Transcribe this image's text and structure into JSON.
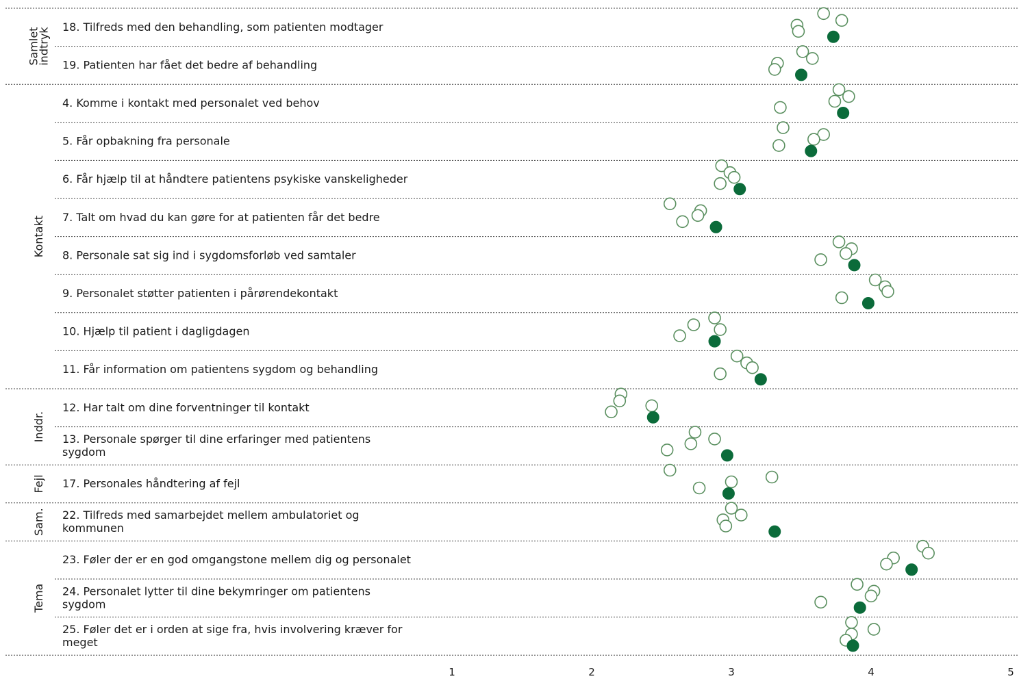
{
  "chart_data": {
    "type": "scatter",
    "title": "",
    "xlabel": "",
    "ylabel": "",
    "xlim": [
      1,
      5
    ],
    "x_ticks": [
      "1",
      "2",
      "3",
      "4",
      "5"
    ],
    "groups": [
      {
        "label": "Samlet indtryk",
        "label_lines": [
          "Samlet",
          "indtryk"
        ],
        "items": [
          {
            "label": "18. Tilfreds med den behandling, som patienten modtager",
            "highlight": 3.73,
            "others": [
              3.66,
              3.79,
              3.47,
              3.48
            ]
          },
          {
            "label": "19. Patienten har fået det bedre af behandling",
            "highlight": 3.5,
            "others": [
              3.51,
              3.58,
              3.33,
              3.31
            ]
          }
        ]
      },
      {
        "label": "Kontakt",
        "label_lines": [
          "Kontakt"
        ],
        "items": [
          {
            "label": "4. Komme i kontakt med personalet ved behov",
            "highlight": 3.8,
            "others": [
              3.77,
              3.84,
              3.74,
              3.35
            ]
          },
          {
            "label": "5. Får opbakning fra personale",
            "highlight": 3.57,
            "others": [
              3.37,
              3.66,
              3.59,
              3.34
            ]
          },
          {
            "label": "6. Får hjælp til at håndtere patientens psykiske vanskeligheder",
            "highlight": 3.06,
            "others": [
              2.93,
              2.99,
              3.02,
              2.92
            ]
          },
          {
            "label": "7. Talt om hvad du kan gøre for at patienten får det bedre",
            "highlight": 2.89,
            "others": [
              2.56,
              2.78,
              2.76,
              2.65
            ]
          },
          {
            "label": "8. Personale sat sig ind i sygdomsforløb ved samtaler",
            "highlight": 3.88,
            "others": [
              3.77,
              3.86,
              3.82,
              3.64
            ]
          },
          {
            "label": "9. Personalet støtter patienten i pårørendekontakt",
            "highlight": 3.98,
            "others": [
              4.03,
              4.1,
              4.12,
              3.79
            ]
          },
          {
            "label": "10. Hjælp til patient i dagligdagen",
            "highlight": 2.88,
            "others": [
              2.88,
              2.73,
              2.92,
              2.63
            ]
          },
          {
            "label": "11. Får information om patientens sygdom og behandling",
            "highlight": 3.21,
            "others": [
              3.04,
              3.11,
              3.15,
              2.92
            ]
          }
        ]
      },
      {
        "label": "Inddr.",
        "label_lines": [
          "Inddr."
        ],
        "items": [
          {
            "label": "12. Har talt om dine forventninger til kontakt",
            "highlight": 2.44,
            "others": [
              2.21,
              2.2,
              2.43,
              2.14
            ]
          },
          {
            "label": "13. Personale spørger til dine erfaringer med patientens sygdom",
            "label_lines": [
              "13. Personale spørger til dine erfaringer med patientens",
              "sygdom"
            ],
            "highlight": 2.97,
            "others": [
              2.74,
              2.88,
              2.71,
              2.54
            ]
          }
        ]
      },
      {
        "label": "Fejl",
        "label_lines": [
          "Fejl"
        ],
        "items": [
          {
            "label": "17. Personales håndtering af fejl",
            "highlight": 2.98,
            "others": [
              2.56,
              3.29,
              3.0,
              2.77
            ]
          }
        ]
      },
      {
        "label": "Sam.",
        "label_lines": [
          "Sam."
        ],
        "items": [
          {
            "label": "22. Tilfreds med samarbejdet mellem ambulatoriet og kommunen",
            "label_lines": [
              "22. Tilfreds med samarbejdet mellem ambulatoriet og",
              "kommunen"
            ],
            "highlight": 3.31,
            "others": [
              3.0,
              3.07,
              2.94,
              2.96
            ]
          }
        ]
      },
      {
        "label": "Tema",
        "label_lines": [
          "Tema"
        ],
        "items": [
          {
            "label": "23. Føler der er en god omgangstone mellem dig og personalet",
            "highlight": 4.29,
            "others": [
              4.37,
              4.41,
              4.16,
              4.11
            ]
          },
          {
            "label": "24. Personalet lytter til dine bekymringer om patientens sygdom",
            "label_lines": [
              "24. Personalet lytter til dine bekymringer om patientens",
              "sygdom"
            ],
            "highlight": 3.92,
            "others": [
              3.9,
              4.02,
              4.0,
              3.64
            ]
          },
          {
            "label": "25. Føler det er i orden at sige fra, hvis involvering kræver for meget",
            "label_lines": [
              "25. Føler det er i orden at sige fra, hvis involvering kræver for",
              "meget"
            ],
            "highlight": 3.87,
            "others": [
              3.86,
              4.02,
              3.86,
              3.82
            ]
          }
        ]
      }
    ],
    "colors": {
      "highlight": "#0b6b3a",
      "other_stroke": "#5a8f5f",
      "separator": "#444444"
    },
    "legend": "none",
    "grid": false
  }
}
